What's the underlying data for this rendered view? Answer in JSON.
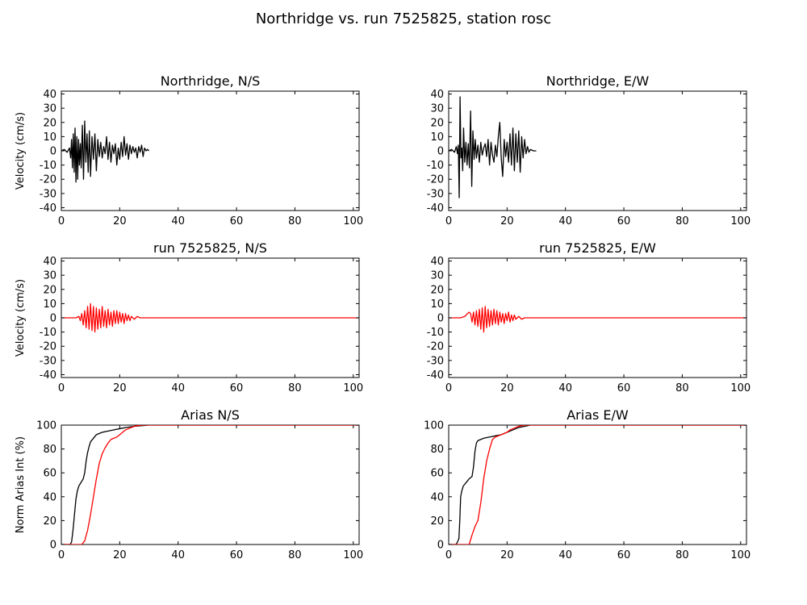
{
  "figure": {
    "title": "Northridge vs. run 7525825, station rosc"
  },
  "colors": {
    "recorded": "#000000",
    "simulated": "#ff0000",
    "axes": "#000000",
    "background": "#ffffff"
  },
  "chart_data": [
    {
      "id": "ns-recorded",
      "type": "line",
      "title": "Northridge, N/S",
      "xlabel": "",
      "ylabel": "Velocity (cm/s)",
      "xlim": [
        0,
        102
      ],
      "ylim": [
        -42,
        42
      ],
      "xticks": [
        0,
        20,
        40,
        60,
        80,
        100
      ],
      "yticks": [
        -40,
        -30,
        -20,
        -10,
        0,
        10,
        20,
        30,
        40
      ],
      "series": [
        {
          "color": "#000000",
          "x": [
            0,
            1.0,
            2.0,
            2.8,
            3.2,
            3.5,
            3.8,
            4.1,
            4.4,
            4.7,
            5.0,
            5.3,
            5.6,
            5.9,
            6.2,
            6.5,
            6.8,
            7.2,
            7.6,
            8.0,
            8.4,
            8.8,
            9.2,
            9.6,
            10.0,
            10.5,
            11.0,
            11.5,
            12.0,
            12.5,
            13.0,
            13.5,
            14.0,
            14.5,
            15.0,
            15.5,
            16.0,
            16.5,
            17.0,
            17.5,
            18.0,
            18.5,
            19.0,
            19.5,
            20.0,
            20.5,
            21.0,
            21.5,
            22.0,
            22.5,
            23.0,
            23.5,
            24.0,
            24.5,
            25.0,
            25.5,
            26.0,
            26.5,
            27.0,
            27.5,
            28.0,
            28.5,
            29.0,
            29.5,
            30.0
          ],
          "y": [
            0,
            1,
            -1,
            2,
            -5,
            8,
            -12,
            12,
            -15,
            16,
            -22,
            10,
            -20,
            8,
            -10,
            5,
            -12,
            18,
            -20,
            21,
            -8,
            12,
            -15,
            14,
            -18,
            10,
            -6,
            12,
            -14,
            8,
            -4,
            6,
            -5,
            3,
            -2,
            10,
            -6,
            6,
            -8,
            4,
            -2,
            5,
            -10,
            2,
            -6,
            6,
            -4,
            10,
            -3,
            5,
            -6,
            4,
            -2,
            3,
            -1,
            2,
            -5,
            3,
            -1,
            4,
            -4,
            2,
            0,
            1,
            0
          ]
        }
      ]
    },
    {
      "id": "ew-recorded",
      "type": "line",
      "title": "Northridge, E/W",
      "xlabel": "",
      "ylabel": "",
      "xlim": [
        0,
        102
      ],
      "ylim": [
        -42,
        42
      ],
      "xticks": [
        0,
        20,
        40,
        60,
        80,
        100
      ],
      "yticks": [
        -40,
        -30,
        -20,
        -10,
        0,
        10,
        20,
        30,
        40
      ],
      "series": [
        {
          "color": "#000000",
          "x": [
            0,
            1.0,
            2.0,
            2.6,
            3.0,
            3.3,
            3.6,
            3.9,
            4.2,
            4.5,
            4.8,
            5.1,
            5.5,
            5.9,
            6.3,
            6.7,
            7.1,
            7.5,
            7.9,
            8.3,
            8.7,
            9.1,
            9.5,
            10.0,
            10.5,
            11.0,
            11.5,
            12.0,
            12.5,
            13.0,
            13.5,
            14.0,
            14.5,
            15.0,
            15.5,
            16.0,
            16.5,
            17.0,
            17.5,
            18.0,
            18.5,
            19.0,
            19.5,
            20.0,
            20.5,
            21.0,
            21.5,
            22.0,
            22.5,
            23.0,
            23.5,
            24.0,
            24.5,
            25.0,
            25.5,
            26.0,
            26.5,
            27.0,
            27.5,
            28.0,
            29.0,
            30.0
          ],
          "y": [
            0,
            1,
            -1,
            3,
            -2,
            4,
            -33,
            38,
            -5,
            2,
            -14,
            16,
            -8,
            6,
            -10,
            5,
            -12,
            28,
            -25,
            14,
            -6,
            8,
            -5,
            4,
            -8,
            6,
            -3,
            2,
            5,
            -4,
            8,
            -10,
            6,
            -3,
            -8,
            4,
            -4,
            10,
            20,
            -5,
            -18,
            8,
            -4,
            6,
            -8,
            12,
            -10,
            16,
            -14,
            12,
            -8,
            14,
            -15,
            10,
            -5,
            8,
            -2,
            3,
            -1,
            1,
            0,
            0
          ]
        }
      ]
    },
    {
      "id": "ns-simulated",
      "type": "line",
      "title": "run 7525825, N/S",
      "xlabel": "",
      "ylabel": "Velocity (cm/s)",
      "xlim": [
        0,
        102
      ],
      "ylim": [
        -42,
        42
      ],
      "xticks": [
        0,
        20,
        40,
        60,
        80,
        100
      ],
      "yticks": [
        -40,
        -30,
        -20,
        -10,
        0,
        10,
        20,
        30,
        40
      ],
      "series": [
        {
          "color": "#ff0000",
          "x": [
            0,
            5.0,
            6.0,
            6.5,
            7.0,
            7.5,
            8.0,
            8.5,
            9.0,
            9.5,
            10.0,
            10.5,
            11.0,
            11.5,
            12.0,
            12.5,
            13.0,
            13.5,
            14.0,
            14.5,
            15.0,
            15.5,
            16.0,
            16.5,
            17.0,
            17.5,
            18.0,
            18.5,
            19.0,
            19.5,
            20.0,
            20.5,
            21.0,
            21.5,
            22.0,
            22.5,
            23.0,
            23.5,
            24.0,
            25.0,
            26.0,
            27.0,
            28.0,
            30.0,
            102
          ],
          "y": [
            0,
            0,
            1,
            -2,
            3,
            -5,
            5,
            -7,
            8,
            -8,
            10,
            -9,
            8,
            -10,
            7,
            -8,
            6,
            -7,
            8,
            -6,
            5,
            -7,
            6,
            -5,
            4,
            -6,
            5,
            -4,
            5,
            -4,
            4,
            -3,
            3,
            -4,
            3,
            -2,
            2,
            -2,
            1,
            -1,
            1,
            0,
            0,
            0,
            0
          ]
        }
      ]
    },
    {
      "id": "ew-simulated",
      "type": "line",
      "title": "run 7525825, E/W",
      "xlabel": "",
      "ylabel": "",
      "xlim": [
        0,
        102
      ],
      "ylim": [
        -42,
        42
      ],
      "xticks": [
        0,
        20,
        40,
        60,
        80,
        100
      ],
      "yticks": [
        -40,
        -30,
        -20,
        -10,
        0,
        10,
        20,
        30,
        40
      ],
      "series": [
        {
          "color": "#ff0000",
          "x": [
            0,
            4.0,
            5.5,
            6.5,
            7.0,
            7.5,
            8.0,
            8.5,
            9.0,
            9.5,
            10.0,
            10.5,
            11.0,
            11.5,
            12.0,
            12.5,
            13.0,
            13.5,
            14.0,
            14.5,
            15.0,
            15.5,
            16.0,
            16.5,
            17.0,
            17.5,
            18.0,
            18.5,
            19.0,
            19.5,
            20.0,
            20.5,
            21.0,
            21.5,
            22.0,
            22.5,
            23.0,
            24.0,
            25.0,
            26.0,
            28.0,
            102
          ],
          "y": [
            0,
            0,
            1,
            3,
            4,
            3,
            -3,
            4,
            -5,
            5,
            -6,
            6,
            -8,
            7,
            -10,
            8,
            -7,
            6,
            -6,
            5,
            -5,
            6,
            -4,
            5,
            -5,
            4,
            -3,
            3,
            -4,
            3,
            -2,
            4,
            -3,
            2,
            -2,
            2,
            -1,
            1,
            -1,
            0,
            0,
            0
          ]
        }
      ]
    },
    {
      "id": "ns-arias",
      "type": "line",
      "title": "Arias N/S",
      "xlabel": "",
      "ylabel": "Norm Arias Int (%)",
      "xlim": [
        0,
        102
      ],
      "ylim": [
        0,
        100
      ],
      "xticks": [
        0,
        20,
        40,
        60,
        80,
        100
      ],
      "yticks": [
        0,
        20,
        40,
        60,
        80,
        100
      ],
      "series": [
        {
          "color": "#000000",
          "x": [
            0,
            3.0,
            3.5,
            4.0,
            4.5,
            5.0,
            5.5,
            6.0,
            6.5,
            7.0,
            7.5,
            8.0,
            8.5,
            9.0,
            9.5,
            10.0,
            11.0,
            12.0,
            13.0,
            14.0,
            16.0,
            18.0,
            20.0,
            22.0,
            25.0,
            30.0,
            102
          ],
          "y": [
            0,
            0,
            2,
            12,
            25,
            38,
            45,
            49,
            51,
            53,
            55,
            60,
            70,
            77,
            82,
            86,
            89,
            92,
            93,
            94,
            95,
            96,
            97,
            98,
            99,
            100,
            100
          ]
        },
        {
          "color": "#ff0000",
          "x": [
            0,
            7.0,
            8.0,
            9.0,
            10.0,
            11.0,
            12.0,
            13.0,
            14.0,
            15.0,
            16.0,
            17.0,
            18.0,
            19.0,
            20.0,
            21.0,
            22.0,
            23.0,
            24.0,
            25.0,
            26.0,
            28.0,
            30.0,
            102
          ],
          "y": [
            0,
            0,
            3,
            12,
            25,
            40,
            55,
            68,
            76,
            81,
            85,
            88,
            89,
            90,
            92,
            94,
            96,
            97,
            98,
            99,
            99.5,
            100,
            100,
            100
          ]
        }
      ]
    },
    {
      "id": "ew-arias",
      "type": "line",
      "title": "Arias E/W",
      "xlabel": "",
      "ylabel": "",
      "xlim": [
        0,
        102
      ],
      "ylim": [
        0,
        100
      ],
      "xticks": [
        0,
        20,
        40,
        60,
        80,
        100
      ],
      "yticks": [
        0,
        20,
        40,
        60,
        80,
        100
      ],
      "series": [
        {
          "color": "#000000",
          "x": [
            0,
            2.5,
            3.0,
            3.5,
            3.8,
            4.1,
            4.5,
            5.0,
            6.0,
            7.0,
            8.0,
            8.5,
            9.0,
            9.5,
            10.0,
            11.0,
            12.0,
            14.0,
            16.0,
            18.0,
            20.0,
            22.0,
            24.0,
            26.0,
            28.0,
            102
          ],
          "y": [
            0,
            0,
            2,
            5,
            20,
            40,
            45,
            49,
            52,
            55,
            57,
            65,
            78,
            85,
            87,
            88,
            89,
            90,
            91,
            92,
            94,
            96,
            98,
            99,
            100,
            100
          ]
        },
        {
          "color": "#ff0000",
          "x": [
            0,
            7.0,
            8.0,
            9.0,
            10.0,
            11.0,
            12.0,
            13.0,
            14.0,
            15.0,
            16.0,
            17.0,
            18.0,
            19.0,
            20.0,
            21.0,
            22.0,
            23.0,
            24.0,
            25.0,
            26.0,
            28.0,
            102
          ],
          "y": [
            0,
            0,
            8,
            15,
            20,
            35,
            55,
            70,
            80,
            88,
            90,
            91,
            92,
            93,
            94,
            96,
            97,
            98,
            99,
            99.5,
            100,
            100,
            100
          ]
        }
      ]
    }
  ]
}
